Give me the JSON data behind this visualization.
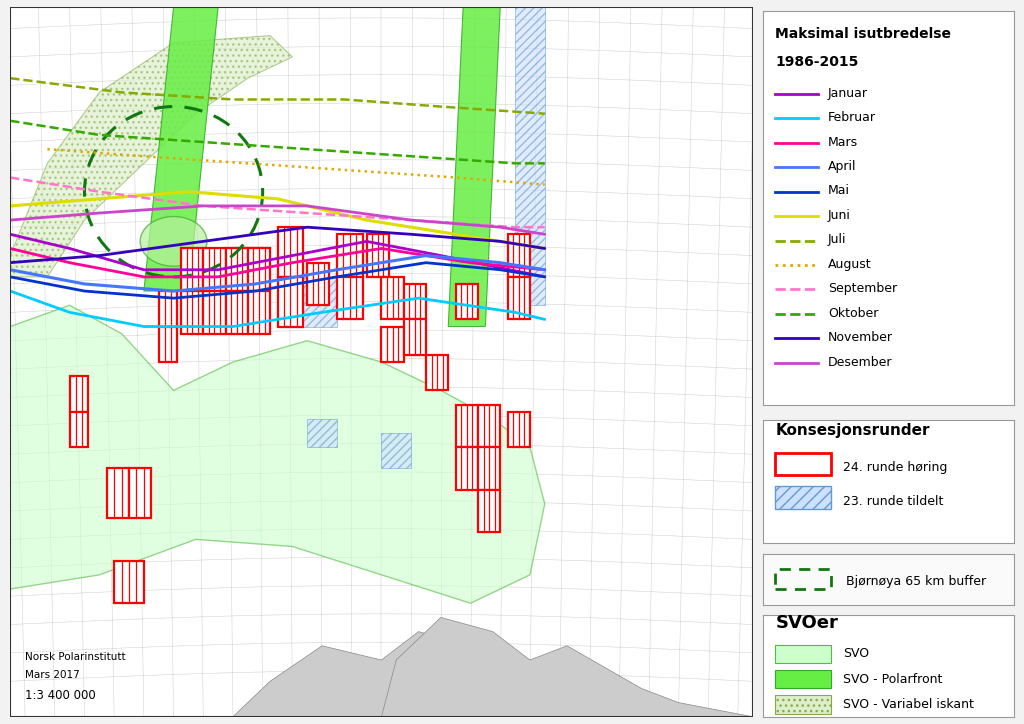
{
  "figure_width": 10.24,
  "figure_height": 7.24,
  "bg_color": "#f2f2f2",
  "map_bg": "#ffffff",
  "title1": "Maksimal isutbredelse",
  "title2": "1986-2015",
  "months": [
    "Januar",
    "Februar",
    "Mars",
    "April",
    "Mai",
    "Juni",
    "Juli",
    "August",
    "September",
    "Oktober",
    "November",
    "Desember"
  ],
  "month_colors": [
    "#aa00cc",
    "#00ccff",
    "#ff0099",
    "#4477ff",
    "#0033cc",
    "#dddd00",
    "#88aa00",
    "#ddaa00",
    "#ff77cc",
    "#33aa00",
    "#3300bb",
    "#cc44cc"
  ],
  "month_styles": [
    "-",
    "-",
    "-",
    "-",
    "-",
    "-",
    "--",
    ":",
    "--",
    "--",
    "-",
    "-"
  ],
  "konsesjon_title": "Konsesjonsrunder",
  "konsesjon_items": [
    "24. runde høring",
    "23. runde tildelt"
  ],
  "buffer_label": "Bjørnøya 65 km buffer",
  "svoer_title": "SVOer",
  "svo_items": [
    "SVO",
    "SVO - Polarfront",
    "SVO - Variabel iskant"
  ],
  "svo_light": "#ccffcc",
  "svo_bright": "#66ee44",
  "svo_hatch_fc": "#ddeecc",
  "credit_line1": "Norsk Polarinstitutt",
  "credit_line2": "Mars 2017",
  "scale_text": "1:3 400 000",
  "grid_color": "#aaaaaa",
  "land_color": "#cccccc",
  "sea_color": "#e8f0ff",
  "hatch_blue_fc": "#cce0ff",
  "hatch_blue_ec": "#6699cc"
}
